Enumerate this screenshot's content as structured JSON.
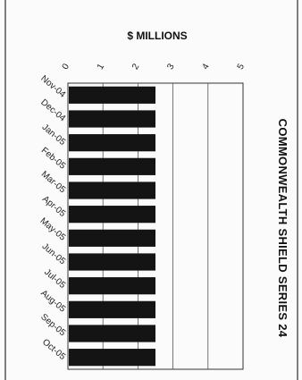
{
  "chart_data": {
    "type": "bar",
    "orientation": "horizontal",
    "title": "$ MILLIONS",
    "side_title": "COMMONWEALTH SHIELD SERIES 24",
    "categories": [
      "Nov-04",
      "Dec-04",
      "Jan-05",
      "Feb-05",
      "Mar-05",
      "Apr-05",
      "May-05",
      "Jun-05",
      "Jul-05",
      "Aug-05",
      "Sep-05",
      "Oct-05"
    ],
    "values": [
      2.5,
      2.5,
      2.5,
      2.5,
      2.5,
      2.5,
      2.5,
      2.5,
      2.5,
      2.5,
      2.5,
      2.5
    ],
    "x_ticks": [
      "0",
      "1",
      "2",
      "3",
      "4",
      "5"
    ],
    "xlim": [
      0,
      5
    ],
    "grid": true,
    "bar_color": "#141414"
  }
}
